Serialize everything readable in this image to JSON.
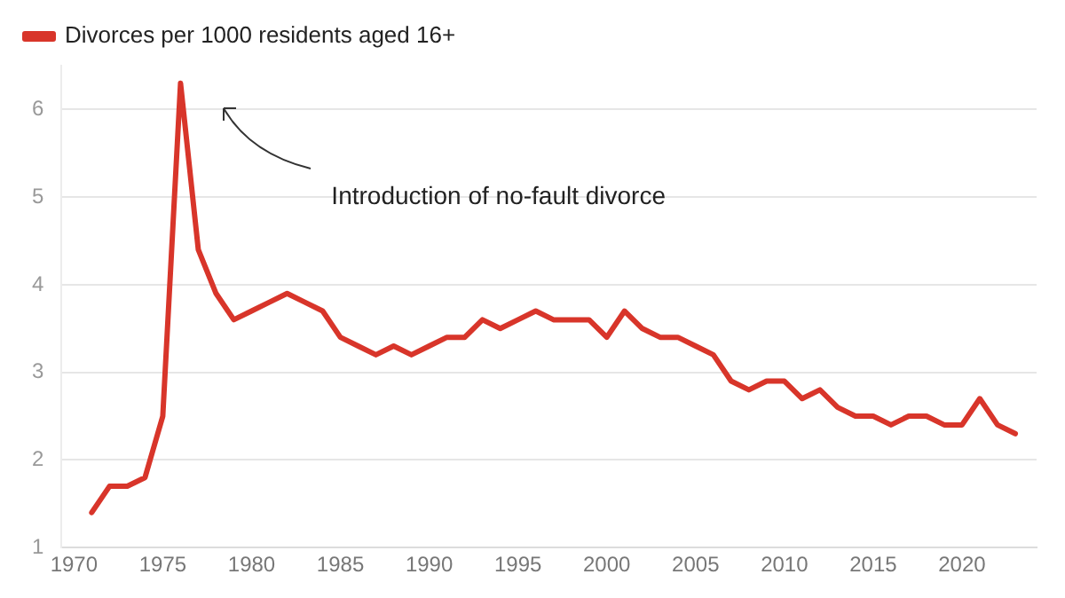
{
  "chart_data": {
    "type": "line",
    "x": [
      1971,
      1972,
      1973,
      1974,
      1975,
      1976,
      1977,
      1978,
      1979,
      1980,
      1981,
      1982,
      1983,
      1984,
      1985,
      1986,
      1987,
      1988,
      1989,
      1990,
      1991,
      1992,
      1993,
      1994,
      1995,
      1996,
      1997,
      1998,
      1999,
      2000,
      2001,
      2002,
      2003,
      2004,
      2005,
      2006,
      2007,
      2008,
      2009,
      2010,
      2011,
      2012,
      2013,
      2014,
      2015,
      2016,
      2017,
      2018,
      2019,
      2020,
      2021,
      2022,
      2023
    ],
    "series": [
      {
        "name": "Divorces per 1000 residents aged 16+",
        "color": "#d8352a",
        "values": [
          1.4,
          1.7,
          1.7,
          1.8,
          2.5,
          6.3,
          4.4,
          3.9,
          3.6,
          3.7,
          3.8,
          3.9,
          3.8,
          3.7,
          3.4,
          3.3,
          3.2,
          3.3,
          3.2,
          3.3,
          3.4,
          3.4,
          3.6,
          3.5,
          3.6,
          3.7,
          3.6,
          3.6,
          3.6,
          3.4,
          3.7,
          3.5,
          3.4,
          3.4,
          3.3,
          3.2,
          2.9,
          2.8,
          2.9,
          2.9,
          2.7,
          2.8,
          2.6,
          2.5,
          2.5,
          2.4,
          2.5,
          2.5,
          2.4,
          2.4,
          2.7,
          2.4,
          2.3
        ]
      }
    ],
    "xlim": [
      1969.3,
      2024.2
    ],
    "xticks": [
      1970,
      1975,
      1980,
      1985,
      1990,
      1995,
      2000,
      2005,
      2010,
      2015,
      2020
    ],
    "ylim": [
      1,
      6.5
    ],
    "yticks": [
      1,
      2,
      3,
      4,
      5,
      6
    ],
    "grid": "y",
    "legend": "top left",
    "marker": "none",
    "line_style": "solid",
    "annotations": [
      "Introduction of no-fault divorce"
    ]
  }
}
